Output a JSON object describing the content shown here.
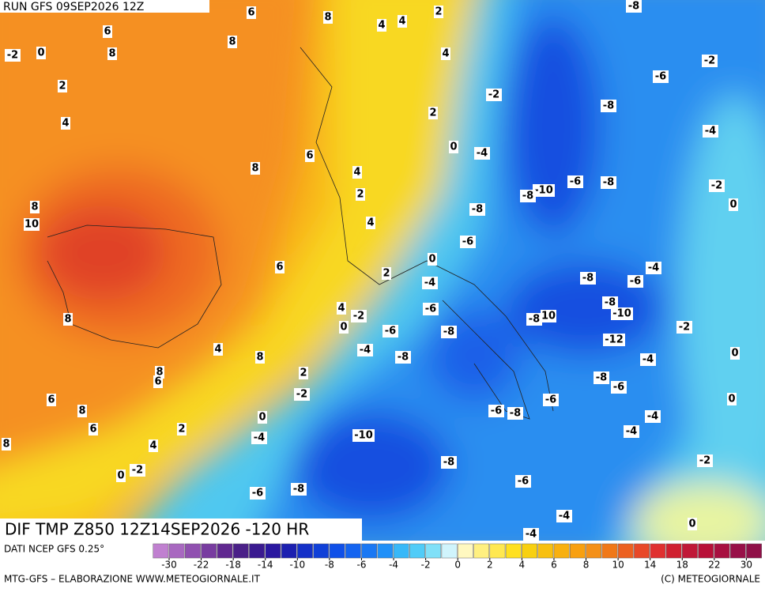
{
  "header": {
    "run": "RUN GFS 09SEP2026 12Z",
    "title": "DIF TMP Z850 12Z14SEP2026 -120 HR",
    "source": "DATI NCEP GFS 0.25°",
    "credit": "MTG-GFS – ELABORAZIONE WWW.METEOGIORNALE.IT",
    "copyright": "(C) METEOGIORNALE"
  },
  "legend": {
    "colors": [
      "#c080d0",
      "#a868c0",
      "#9050b0",
      "#783ca0",
      "#602890",
      "#4a2088",
      "#3a1a90",
      "#2a18a0",
      "#1c20b0",
      "#1430c8",
      "#1040d8",
      "#1050e8",
      "#1464f0",
      "#1a78f4",
      "#2090f8",
      "#38b8f8",
      "#50ccf8",
      "#80e0f8",
      "#d0f4fc",
      "#fff8c0",
      "#fff080",
      "#ffe850",
      "#ffe020",
      "#f8d010",
      "#f8c010",
      "#f8b010",
      "#f8a010",
      "#f49018",
      "#f07818",
      "#ec6020",
      "#e84828",
      "#e03030",
      "#d02030",
      "#c01838",
      "#b81038",
      "#a81040",
      "#981048",
      "#901048"
    ],
    "ticks": [
      -30,
      -22,
      -18,
      -14,
      -10,
      -8,
      -6,
      -4,
      -2,
      0,
      2,
      4,
      6,
      8,
      10,
      14,
      18,
      22,
      30
    ]
  },
  "contour_labels": [
    -2,
    0,
    6,
    8,
    2,
    4,
    6,
    8,
    8,
    4,
    4,
    2,
    4,
    -8,
    -2,
    -6,
    -2,
    -8,
    2,
    -4,
    0,
    -4,
    6,
    8,
    4,
    -10,
    -8,
    -6,
    -8,
    -2,
    2,
    0,
    8,
    10,
    -8,
    4,
    -6,
    0,
    6,
    -4,
    2,
    -8,
    -6,
    -4,
    4,
    -6,
    -8,
    -10,
    -2,
    -8,
    10,
    8,
    0,
    -2,
    -6,
    -8,
    -12,
    4,
    -4,
    8,
    0,
    -8,
    -4,
    8,
    6,
    2,
    -8,
    -6,
    -2,
    6,
    0,
    -6,
    8,
    -6,
    -8,
    -4,
    0,
    6,
    2,
    -10,
    -4,
    -4,
    8,
    4,
    -2,
    -8,
    0,
    -2,
    -6,
    -8,
    -6,
    -4,
    0,
    -4
  ]
}
